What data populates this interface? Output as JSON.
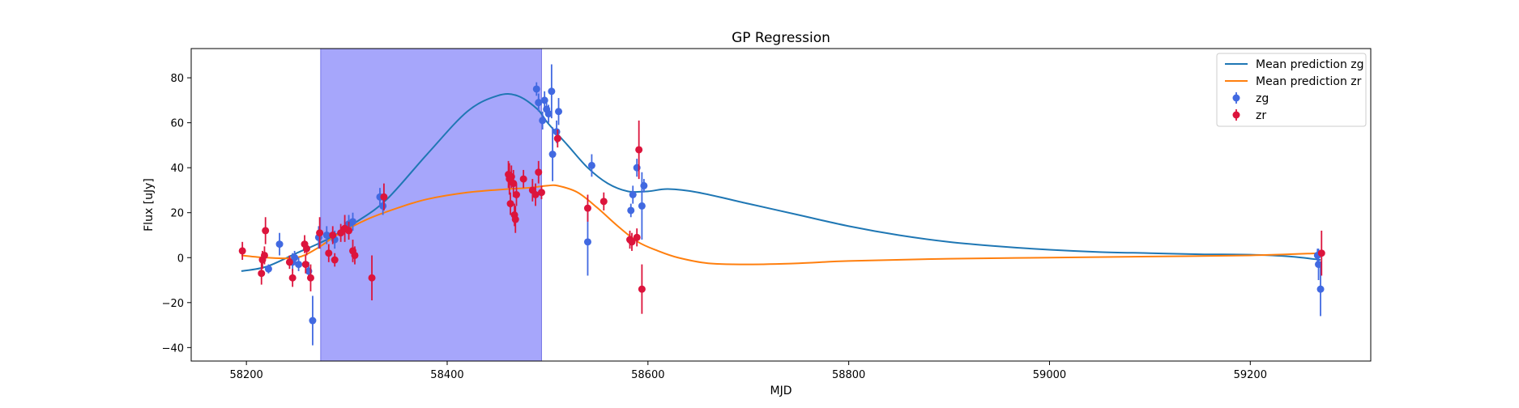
{
  "chart_data": {
    "type": "scatter",
    "title": "GP Regression",
    "xlabel": "MJD",
    "ylabel": "Flux [uJy]",
    "xlim": [
      58145,
      59320
    ],
    "ylim": [
      -46,
      93
    ],
    "xticks": [
      58200,
      58400,
      58600,
      58800,
      59000,
      59200
    ],
    "yticks": [
      -40,
      -20,
      0,
      20,
      40,
      60,
      80
    ],
    "grid": false,
    "legend_position": "top-right",
    "shaded_region": {
      "x_start": 58274,
      "x_end": 58494,
      "color": "#a6a6fb"
    },
    "series": [
      {
        "name": "Mean prediction zg",
        "kind": "line",
        "color": "#1f77b4",
        "x": [
          58195,
          58220,
          58250,
          58280,
          58310,
          58340,
          58380,
          58420,
          58450,
          58470,
          58490,
          58500,
          58520,
          58540,
          58560,
          58580,
          58600,
          58620,
          58650,
          58700,
          58750,
          58800,
          58850,
          58900,
          58950,
          59000,
          59050,
          59100,
          59150,
          59200,
          59240,
          59270
        ],
        "y": [
          -6,
          -4,
          2,
          8,
          16,
          26,
          46,
          65,
          72,
          72,
          66,
          60,
          50,
          40,
          33,
          29.5,
          29.5,
          30.5,
          29,
          24,
          19,
          14,
          10,
          7,
          5,
          3.5,
          2.5,
          2,
          1.5,
          1.3,
          0.5,
          -1
        ]
      },
      {
        "name": "Mean prediction zr",
        "kind": "line",
        "color": "#ff7f0e",
        "x": [
          58195,
          58220,
          58250,
          58270,
          58290,
          58320,
          58350,
          58380,
          58420,
          58460,
          58480,
          58500,
          58510,
          58530,
          58550,
          58570,
          58590,
          58610,
          58630,
          58660,
          58700,
          58750,
          58800,
          58900,
          59000,
          59100,
          59200,
          59270
        ],
        "y": [
          1,
          0,
          0,
          4,
          10,
          17,
          22,
          26,
          29,
          30.5,
          31,
          32,
          32,
          29,
          22,
          14,
          7,
          3,
          0,
          -2.5,
          -3,
          -2.5,
          -1.5,
          -0.5,
          0,
          0.5,
          1,
          2
        ]
      },
      {
        "name": "zg",
        "kind": "errorbar",
        "color": "#4169e1",
        "points": [
          {
            "x": 58222,
            "y": -5,
            "err": 2
          },
          {
            "x": 58233,
            "y": 6,
            "err": 5
          },
          {
            "x": 58246,
            "y": -2,
            "err": 4
          },
          {
            "x": 58248,
            "y": 0,
            "err": 3
          },
          {
            "x": 58252,
            "y": -3,
            "err": 3
          },
          {
            "x": 58262,
            "y": -6,
            "err": 4
          },
          {
            "x": 58266,
            "y": -28,
            "err": 11
          },
          {
            "x": 58272,
            "y": 9,
            "err": 5
          },
          {
            "x": 58280,
            "y": 10,
            "err": 4
          },
          {
            "x": 58288,
            "y": 8,
            "err": 4
          },
          {
            "x": 58302,
            "y": 15,
            "err": 4
          },
          {
            "x": 58306,
            "y": 16,
            "err": 4
          },
          {
            "x": 58333,
            "y": 27,
            "err": 4
          },
          {
            "x": 58336,
            "y": 23,
            "err": 4
          },
          {
            "x": 58489,
            "y": 75,
            "err": 3
          },
          {
            "x": 58491,
            "y": 69,
            "err": 4
          },
          {
            "x": 58495,
            "y": 61,
            "err": 4
          },
          {
            "x": 58497,
            "y": 70,
            "err": 4
          },
          {
            "x": 58499,
            "y": 66,
            "err": 3
          },
          {
            "x": 58501,
            "y": 64,
            "err": 4
          },
          {
            "x": 58504,
            "y": 74,
            "err": 12
          },
          {
            "x": 58505,
            "y": 46,
            "err": 12
          },
          {
            "x": 58509,
            "y": 56,
            "err": 5
          },
          {
            "x": 58511,
            "y": 65,
            "err": 6
          },
          {
            "x": 58540,
            "y": 7,
            "err": 15
          },
          {
            "x": 58544,
            "y": 41,
            "err": 5
          },
          {
            "x": 58583,
            "y": 21,
            "err": 3
          },
          {
            "x": 58585,
            "y": 28,
            "err": 4
          },
          {
            "x": 58589,
            "y": 40,
            "err": 4
          },
          {
            "x": 58594,
            "y": 23,
            "err": 15
          },
          {
            "x": 58596,
            "y": 32,
            "err": 3
          },
          {
            "x": 59267,
            "y": 1,
            "err": 3
          },
          {
            "x": 59268,
            "y": -3,
            "err": 7
          },
          {
            "x": 59270,
            "y": -14,
            "err": 12
          }
        ]
      },
      {
        "name": "zr",
        "kind": "errorbar",
        "color": "#dc143c",
        "points": [
          {
            "x": 58196,
            "y": 3,
            "err": 4
          },
          {
            "x": 58215,
            "y": -7,
            "err": 5
          },
          {
            "x": 58216,
            "y": -1,
            "err": 4
          },
          {
            "x": 58218,
            "y": 1,
            "err": 4
          },
          {
            "x": 58219,
            "y": 12,
            "err": 6
          },
          {
            "x": 58243,
            "y": -2,
            "err": 3
          },
          {
            "x": 58246,
            "y": -9,
            "err": 4
          },
          {
            "x": 58258,
            "y": 6,
            "err": 4
          },
          {
            "x": 58259,
            "y": -3,
            "err": 4
          },
          {
            "x": 58260,
            "y": 4,
            "err": 3
          },
          {
            "x": 58264,
            "y": -9,
            "err": 6
          },
          {
            "x": 58273,
            "y": 11,
            "err": 7
          },
          {
            "x": 58282,
            "y": 2,
            "err": 4
          },
          {
            "x": 58286,
            "y": 10,
            "err": 4
          },
          {
            "x": 58288,
            "y": -1,
            "err": 3
          },
          {
            "x": 58294,
            "y": 11,
            "err": 4
          },
          {
            "x": 58298,
            "y": 13,
            "err": 6
          },
          {
            "x": 58302,
            "y": 12,
            "err": 4
          },
          {
            "x": 58306,
            "y": 3,
            "err": 5
          },
          {
            "x": 58308,
            "y": 1,
            "err": 4
          },
          {
            "x": 58325,
            "y": -9,
            "err": 10
          },
          {
            "x": 58337,
            "y": 27,
            "err": 6
          },
          {
            "x": 58461,
            "y": 37,
            "err": 6
          },
          {
            "x": 58462,
            "y": 35,
            "err": 7
          },
          {
            "x": 58463,
            "y": 24,
            "err": 5
          },
          {
            "x": 58464,
            "y": 36,
            "err": 5
          },
          {
            "x": 58466,
            "y": 33,
            "err": 6
          },
          {
            "x": 58467,
            "y": 19,
            "err": 5
          },
          {
            "x": 58468,
            "y": 17,
            "err": 6
          },
          {
            "x": 58469,
            "y": 28,
            "err": 5
          },
          {
            "x": 58476,
            "y": 35,
            "err": 4
          },
          {
            "x": 58485,
            "y": 30,
            "err": 5
          },
          {
            "x": 58488,
            "y": 28,
            "err": 5
          },
          {
            "x": 58491,
            "y": 38,
            "err": 5
          },
          {
            "x": 58494,
            "y": 29,
            "err": 3
          },
          {
            "x": 58510,
            "y": 53,
            "err": 4
          },
          {
            "x": 58540,
            "y": 22,
            "err": 6
          },
          {
            "x": 58556,
            "y": 25,
            "err": 4
          },
          {
            "x": 58582,
            "y": 8,
            "err": 4
          },
          {
            "x": 58584,
            "y": 7,
            "err": 4
          },
          {
            "x": 58589,
            "y": 9,
            "err": 4
          },
          {
            "x": 58591,
            "y": 48,
            "err": 13
          },
          {
            "x": 58594,
            "y": -14,
            "err": 11
          },
          {
            "x": 59271,
            "y": 2,
            "err": 10
          }
        ]
      }
    ]
  }
}
